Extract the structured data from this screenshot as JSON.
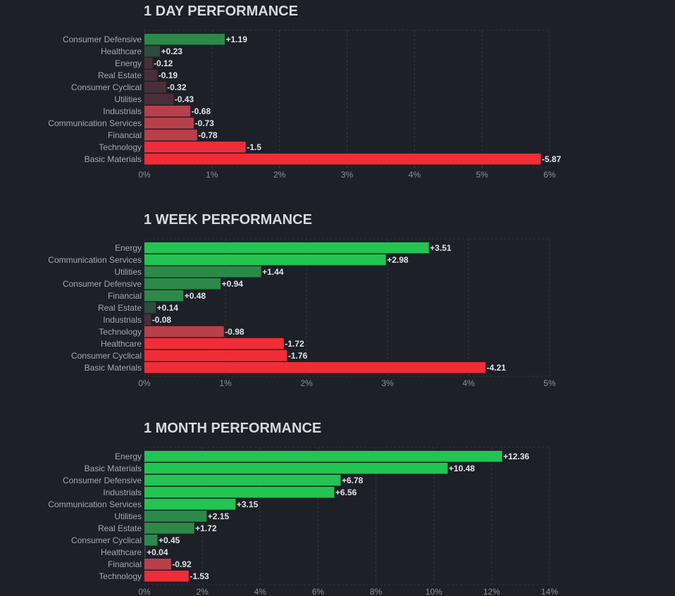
{
  "colors": {
    "background": "#1e2027",
    "positive_strong": "#22c452",
    "positive_mid": "#2b8a48",
    "positive_weak": "#2f4a3e",
    "negative_strong": "#f02d37",
    "negative_mid": "#b8404a",
    "negative_weak": "#4a2f3a"
  },
  "chart_data": [
    {
      "type": "bar",
      "orientation": "horizontal",
      "title": "1 DAY PERFORMANCE",
      "categories": [
        "Consumer Defensive",
        "Healthcare",
        "Energy",
        "Real Estate",
        "Consumer Cyclical",
        "Utilities",
        "Industrials",
        "Communication Services",
        "Financial",
        "Technology",
        "Basic Materials"
      ],
      "values": [
        1.19,
        0.23,
        -0.12,
        -0.19,
        -0.32,
        -0.43,
        -0.68,
        -0.73,
        -0.78,
        -1.5,
        -5.87
      ],
      "value_labels": [
        "+1.19",
        "+0.23",
        "-0.12",
        "-0.19",
        "-0.32",
        "-0.43",
        "-0.68",
        "-0.73",
        "-0.78",
        "-1.5",
        "-5.87"
      ],
      "xlim": [
        0,
        6
      ],
      "xticks": [
        "0%",
        "1%",
        "2%",
        "3%",
        "4%",
        "5%",
        "6%"
      ],
      "xlabel": "",
      "ylabel": "",
      "grid": true
    },
    {
      "type": "bar",
      "orientation": "horizontal",
      "title": "1 WEEK PERFORMANCE",
      "categories": [
        "Energy",
        "Communication Services",
        "Utilities",
        "Consumer Defensive",
        "Financial",
        "Real Estate",
        "Industrials",
        "Technology",
        "Healthcare",
        "Consumer Cyclical",
        "Basic Materials"
      ],
      "values": [
        3.51,
        2.98,
        1.44,
        0.94,
        0.48,
        0.14,
        -0.08,
        -0.98,
        -1.72,
        -1.76,
        -4.21
      ],
      "value_labels": [
        "+3.51",
        "+2.98",
        "+1.44",
        "+0.94",
        "+0.48",
        "+0.14",
        "-0.08",
        "-0.98",
        "-1.72",
        "-1.76",
        "-4.21"
      ],
      "xlim": [
        0,
        5
      ],
      "xticks": [
        "0%",
        "1%",
        "2%",
        "3%",
        "4%",
        "5%"
      ],
      "xlabel": "",
      "ylabel": "",
      "grid": true
    },
    {
      "type": "bar",
      "orientation": "horizontal",
      "title": "1 MONTH PERFORMANCE",
      "categories": [
        "Energy",
        "Basic Materials",
        "Consumer Defensive",
        "Industrials",
        "Communication Services",
        "Utilities",
        "Real Estate",
        "Consumer Cyclical",
        "Healthcare",
        "Financial",
        "Technology"
      ],
      "values": [
        12.36,
        10.48,
        6.78,
        6.56,
        3.15,
        2.15,
        1.72,
        0.45,
        0.04,
        -0.92,
        -1.53
      ],
      "value_labels": [
        "+12.36",
        "+10.48",
        "+6.78",
        "+6.56",
        "+3.15",
        "+2.15",
        "+1.72",
        "+0.45",
        "+0.04",
        "-0.92",
        "-1.53"
      ],
      "xlim": [
        0,
        14
      ],
      "xticks": [
        "0%",
        "2%",
        "4%",
        "6%",
        "8%",
        "10%",
        "12%",
        "14%"
      ],
      "xlabel": "",
      "ylabel": "",
      "grid": true
    }
  ]
}
